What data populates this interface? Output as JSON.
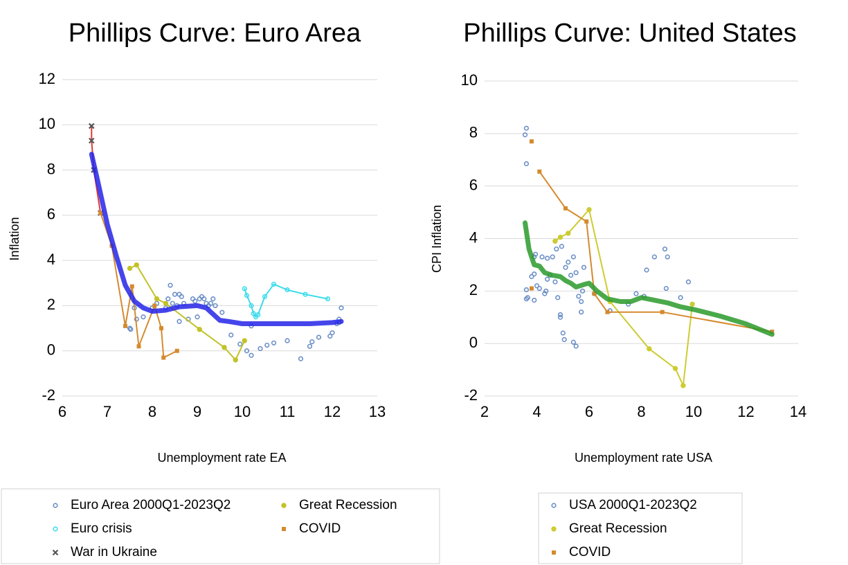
{
  "chart_data": [
    {
      "type": "scatter",
      "title": "Phillips Curve: Euro Area",
      "xlabel": "Unemployment rate EA",
      "ylabel": "Inflation",
      "xlim": [
        6,
        13
      ],
      "xticks": [
        6,
        7,
        8,
        9,
        10,
        11,
        12,
        13
      ],
      "ylim": [
        -2,
        12
      ],
      "yticks": [
        -2,
        0,
        2,
        4,
        6,
        8,
        10,
        12
      ],
      "grid": true,
      "legend": "bottom",
      "series": [
        {
          "name": "Euro Area 2000Q1-2023Q2",
          "color": "#6b8ec7",
          "marker": "circle-open",
          "x": [
            7.5,
            7.52,
            7.6,
            7.65,
            7.8,
            8.0,
            8.1,
            8.3,
            8.35,
            8.4,
            8.45,
            8.5,
            8.55,
            8.6,
            8.65,
            8.6,
            8.7,
            8.8,
            8.9,
            8.95,
            9.0,
            9.05,
            9.1,
            9.15,
            9.2,
            9.25,
            9.3,
            9.35,
            9.4,
            9.55,
            9.75,
            9.95,
            10.1,
            10.2,
            10.4,
            10.55,
            10.7,
            11.0,
            11.3,
            11.5,
            11.55,
            11.7,
            11.95,
            12.0,
            12.1,
            12.15,
            12.2,
            12.15,
            10.2
          ],
          "y": [
            1.0,
            0.95,
            1.9,
            1.4,
            1.5,
            1.9,
            2.1,
            1.9,
            2.3,
            2.9,
            2.1,
            2.5,
            2.0,
            2.5,
            2.4,
            1.3,
            2.1,
            1.4,
            2.3,
            2.2,
            1.5,
            2.3,
            2.4,
            2.3,
            2.1,
            2.0,
            2.1,
            2.3,
            2.0,
            1.7,
            0.7,
            0.3,
            0.0,
            -0.2,
            0.1,
            0.25,
            0.35,
            0.45,
            -0.35,
            0.2,
            0.4,
            0.6,
            0.65,
            0.8,
            1.2,
            1.4,
            1.9,
            1.25,
            1.1
          ]
        },
        {
          "name": "Euro crisis",
          "color": "#3fdcec",
          "marker": "circle-open",
          "line": "#3fdcec",
          "x": [
            10.05,
            10.1,
            10.2,
            10.25,
            10.3,
            10.35,
            10.5,
            10.7,
            11.0,
            11.4,
            11.9
          ],
          "y": [
            2.75,
            2.45,
            2.0,
            1.65,
            1.5,
            1.6,
            2.4,
            2.95,
            2.7,
            2.5,
            2.3
          ]
        },
        {
          "name": "War in Ukraine",
          "color": "#555555",
          "marker": "x",
          "line": "#e53935",
          "x": [
            6.65,
            6.65,
            6.7,
            6.85
          ],
          "y": [
            9.95,
            9.3,
            8.0,
            6.1
          ]
        },
        {
          "name": "Great Recession",
          "color": "#c2c229",
          "marker": "circle",
          "line": "#c2c229",
          "x": [
            7.5,
            7.65,
            8.1,
            8.3,
            9.05,
            9.6,
            9.85,
            10.05
          ],
          "y": [
            3.65,
            3.8,
            2.3,
            2.1,
            0.95,
            0.15,
            -0.4,
            0.45
          ]
        },
        {
          "name": "COVID",
          "color": "#d48a2e",
          "marker": "square",
          "line": "#d48a2e",
          "x": [
            6.85,
            7.1,
            7.4,
            7.55,
            7.7,
            8.05,
            8.2,
            8.25,
            8.55
          ],
          "y": [
            6.1,
            4.65,
            1.1,
            2.85,
            0.2,
            2.0,
            1.0,
            -0.3,
            0.0
          ]
        },
        {
          "color": "#2424e8",
          "marker": "none",
          "line": "#2424e8",
          "line_width": 7,
          "x": [
            6.65,
            6.8,
            7.0,
            7.2,
            7.4,
            7.6,
            7.8,
            8.0,
            8.3,
            8.6,
            9.0,
            9.2,
            9.5,
            9.7,
            10.0,
            10.5,
            11.0,
            11.5,
            12.0,
            12.2
          ],
          "y": [
            8.7,
            7.4,
            5.6,
            4.2,
            2.9,
            2.2,
            1.9,
            1.75,
            1.8,
            1.95,
            2.0,
            1.9,
            1.35,
            1.3,
            1.2,
            1.2,
            1.2,
            1.2,
            1.25,
            1.3
          ]
        }
      ]
    },
    {
      "type": "scatter",
      "title": "Phillips Curve: United States",
      "xlabel": "Unemployment rate USA",
      "ylabel": "CPI Inflation",
      "xlim": [
        2,
        14
      ],
      "xticks": [
        2,
        4,
        6,
        8,
        10,
        12,
        14
      ],
      "ylim": [
        -2,
        10
      ],
      "yticks": [
        -2,
        0,
        2,
        4,
        6,
        8,
        10
      ],
      "grid": true,
      "legend": "bottom",
      "series": [
        {
          "name": "USA 2000Q1-2023Q2",
          "color": "#6b8ec7",
          "marker": "circle-open",
          "x": [
            3.6,
            3.55,
            3.6,
            3.6,
            3.65,
            3.6,
            3.8,
            3.9,
            3.9,
            3.95,
            4.0,
            3.9,
            4.1,
            4.2,
            4.4,
            4.4,
            4.3,
            4.35,
            4.5,
            4.6,
            4.7,
            4.7,
            4.75,
            4.8,
            4.9,
            4.9,
            4.95,
            5.0,
            5.05,
            5.1,
            5.2,
            5.3,
            5.4,
            5.4,
            5.5,
            5.5,
            5.6,
            5.7,
            5.7,
            5.75,
            5.8,
            6.2,
            6.8,
            7.5,
            7.8,
            8.1,
            8.2,
            8.5,
            8.9,
            9.0,
            8.95,
            9.5,
            9.8
          ],
          "y": [
            8.2,
            7.95,
            6.85,
            2.05,
            1.75,
            1.7,
            2.55,
            2.65,
            3.3,
            3.4,
            2.2,
            1.65,
            2.1,
            3.3,
            3.25,
            2.45,
            1.9,
            2.0,
            2.6,
            3.3,
            2.35,
            3.9,
            3.6,
            1.75,
            1.1,
            1.0,
            3.7,
            0.4,
            0.15,
            2.9,
            3.1,
            2.6,
            3.3,
            0.05,
            -0.1,
            2.7,
            1.8,
            1.2,
            1.6,
            2.0,
            2.9,
            1.9,
            1.25,
            1.5,
            1.9,
            1.8,
            2.8,
            3.3,
            3.6,
            3.3,
            2.1,
            1.75,
            2.35
          ]
        },
        {
          "name": "Great Recession",
          "color": "#cccc33",
          "marker": "circle",
          "line": "#cccc33",
          "x": [
            4.7,
            4.9,
            5.2,
            6.0,
            6.8,
            8.3,
            9.3,
            9.6,
            9.95
          ],
          "y": [
            3.9,
            4.05,
            4.2,
            5.1,
            1.6,
            -0.2,
            -0.95,
            -1.6,
            1.5
          ]
        },
        {
          "name": "COVID",
          "color": "#d48a2e",
          "marker": "square",
          "line": "#d48a2e",
          "x": [
            3.8,
            null,
            3.8,
            null,
            4.1,
            5.1,
            5.9,
            6.2,
            6.7,
            8.8,
            13.0
          ],
          "y": [
            2.1,
            null,
            7.7,
            null,
            6.55,
            5.15,
            4.65,
            1.9,
            1.2,
            1.2,
            0.45
          ]
        },
        {
          "color": "#2a9a2a",
          "marker": "none",
          "line": "#2a9a2a",
          "line_width": 7,
          "x": [
            3.55,
            3.7,
            3.9,
            4.1,
            4.3,
            4.6,
            4.9,
            5.1,
            5.3,
            5.5,
            5.8,
            6.0,
            6.3,
            6.7,
            7.2,
            7.6,
            8.0,
            8.5,
            9.0,
            9.5,
            10.0,
            11.0,
            12.0,
            13.0
          ],
          "y": [
            4.6,
            3.6,
            3.0,
            2.95,
            2.7,
            2.6,
            2.55,
            2.4,
            2.3,
            2.15,
            2.25,
            2.3,
            2.0,
            1.7,
            1.6,
            1.6,
            1.75,
            1.65,
            1.55,
            1.4,
            1.3,
            1.05,
            0.75,
            0.35
          ]
        }
      ]
    }
  ]
}
